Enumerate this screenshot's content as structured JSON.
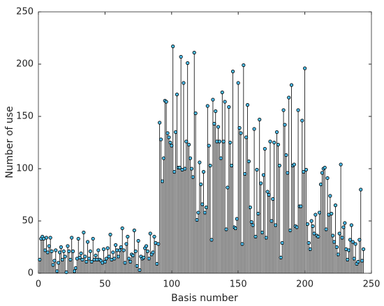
{
  "chart_data": {
    "type": "stem",
    "xlabel": "Basis number",
    "ylabel": "Number of use",
    "x": [
      1,
      2,
      3,
      4,
      5,
      6,
      7,
      8,
      9,
      10,
      11,
      12,
      13,
      14,
      15,
      16,
      17,
      18,
      19,
      20,
      21,
      22,
      23,
      24,
      25,
      26,
      27,
      28,
      29,
      30,
      31,
      32,
      33,
      34,
      35,
      36,
      37,
      38,
      39,
      40,
      41,
      42,
      43,
      44,
      45,
      46,
      47,
      48,
      49,
      50,
      51,
      52,
      53,
      54,
      55,
      56,
      57,
      58,
      59,
      60,
      61,
      62,
      63,
      64,
      65,
      66,
      67,
      68,
      69,
      70,
      71,
      72,
      73,
      74,
      75,
      76,
      77,
      78,
      79,
      80,
      81,
      82,
      83,
      84,
      85,
      86,
      87,
      88,
      89,
      90,
      91,
      92,
      93,
      94,
      95,
      96,
      97,
      98,
      99,
      100,
      101,
      102,
      103,
      104,
      105,
      106,
      107,
      108,
      109,
      110,
      111,
      112,
      113,
      114,
      115,
      116,
      117,
      118,
      119,
      120,
      121,
      122,
      123,
      124,
      125,
      126,
      127,
      128,
      129,
      130,
      131,
      132,
      133,
      134,
      135,
      136,
      137,
      138,
      139,
      140,
      141,
      142,
      143,
      144,
      145,
      146,
      147,
      148,
      149,
      150,
      151,
      152,
      153,
      154,
      155,
      156,
      157,
      158,
      159,
      160,
      161,
      162,
      163,
      164,
      165,
      166,
      167,
      168,
      169,
      170,
      171,
      172,
      173,
      174,
      175,
      176,
      177,
      178,
      179,
      180,
      181,
      182,
      183,
      184,
      185,
      186,
      187,
      188,
      189,
      190,
      191,
      192,
      193,
      194,
      195,
      196,
      197,
      198,
      199,
      200,
      201,
      202,
      203,
      204,
      205,
      206,
      207,
      208,
      209,
      210,
      211,
      212,
      213,
      214,
      215,
      216,
      217,
      218,
      219,
      220,
      221,
      222,
      223,
      224,
      225,
      226,
      227,
      228,
      229,
      230,
      231,
      232,
      233,
      234,
      235,
      236,
      237,
      238,
      239,
      240,
      241,
      242,
      243,
      244
    ],
    "values": [
      13,
      33,
      35,
      33,
      22,
      34,
      20,
      26,
      34,
      21,
      8,
      12,
      22,
      2,
      10,
      20,
      25,
      13,
      21,
      16,
      1,
      26,
      21,
      13,
      34,
      21,
      2,
      5,
      14,
      33,
      15,
      19,
      13,
      39,
      16,
      11,
      30,
      14,
      21,
      11,
      33,
      13,
      17,
      13,
      22,
      13,
      12,
      10,
      23,
      11,
      14,
      24,
      16,
      37,
      13,
      20,
      14,
      27,
      22,
      16,
      22,
      25,
      43,
      22,
      10,
      28,
      35,
      14,
      11,
      18,
      17,
      41,
      21,
      7,
      31,
      3,
      16,
      14,
      15,
      24,
      26,
      21,
      14,
      38,
      18,
      20,
      35,
      29,
      9,
      28,
      144,
      128,
      88,
      110,
      165,
      164,
      134,
      130,
      125,
      122,
      217,
      97,
      135,
      171,
      101,
      101,
      207,
      99,
      182,
      100,
      126,
      201,
      123,
      110,
      100,
      92,
      211,
      153,
      51,
      58,
      106,
      85,
      66,
      97,
      58,
      63,
      160,
      122,
      103,
      32,
      166,
      143,
      155,
      126,
      140,
      126,
      110,
      173,
      126,
      164,
      42,
      82,
      159,
      125,
      103,
      193,
      44,
      43,
      52,
      182,
      139,
      134,
      28,
      199,
      95,
      130,
      161,
      107,
      63,
      49,
      46,
      138,
      35,
      99,
      57,
      147,
      86,
      39,
      94,
      119,
      34,
      78,
      75,
      126,
      50,
      71,
      125,
      46,
      135,
      123,
      103,
      15,
      29,
      156,
      142,
      113,
      96,
      168,
      41,
      180,
      103,
      104,
      45,
      44,
      156,
      64,
      64,
      146,
      97,
      196,
      99,
      47,
      29,
      23,
      50,
      45,
      38,
      56,
      36,
      35,
      58,
      85,
      96,
      100,
      101,
      42,
      91,
      56,
      74,
      57,
      36,
      30,
      65,
      25,
      18,
      38,
      104,
      34,
      44,
      48,
      23,
      13,
      22,
      32,
      46,
      30,
      14,
      28,
      9,
      11,
      32,
      80,
      12,
      23
    ],
    "color": "#4dbeee",
    "stem_color": "#000000",
    "xlim": [
      0,
      250
    ],
    "xticks": [
      0,
      50,
      100,
      150,
      200,
      250
    ],
    "ylim": [
      0,
      250
    ],
    "yticks": [
      0,
      50,
      100,
      150,
      200,
      250
    ]
  }
}
